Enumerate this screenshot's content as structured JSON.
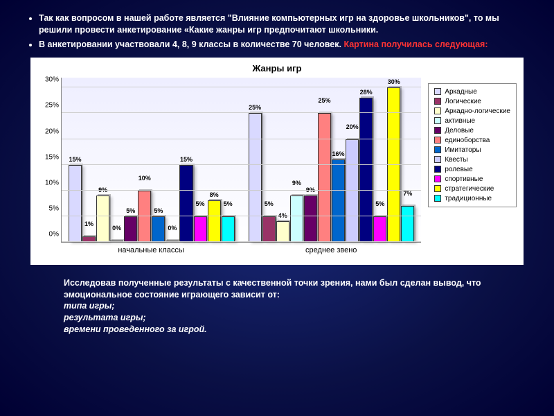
{
  "intro": {
    "bullet1": "Так как вопросом в нашей работе является \"Влияние компьютерных игр на здоровье школьников\", то мы решили провести анкетирование «Какие жанры игр предпочитают школьники.",
    "bullet2_a": " В анкетировании участвовали 4, 8, 9 классы в количестве 70 человек. ",
    "bullet2_b": "Картина получилась следующая:"
  },
  "chart": {
    "title": "Жанры игр",
    "type": "bar",
    "ylim": [
      0,
      30
    ],
    "ytick_step": 5,
    "yticks": [
      "0%",
      "5%",
      "10%",
      "15%",
      "20%",
      "25%",
      "30%"
    ],
    "ymax": 32,
    "background_color": "#ffffff",
    "categories": [
      "начальные классы",
      "среднее звено"
    ],
    "series": [
      {
        "label": "Аркадные",
        "color": "#d9d9ff",
        "values": [
          15,
          25
        ]
      },
      {
        "label": "Логические",
        "color": "#993366",
        "values": [
          1,
          5
        ]
      },
      {
        "label": "Аркадно-логические",
        "color": "#ffffcc",
        "values": [
          9,
          4
        ]
      },
      {
        "label": "активные",
        "color": "#ccffff",
        "values": [
          0,
          9
        ]
      },
      {
        "label": "Деловые",
        "color": "#660066",
        "values": [
          5,
          9
        ]
      },
      {
        "label": "единоборства",
        "color": "#ff8080",
        "values": [
          10,
          25
        ]
      },
      {
        "label": "Имитаторы",
        "color": "#0066cc",
        "values": [
          5,
          16
        ]
      },
      {
        "label": "Квесты",
        "color": "#ccccff",
        "values": [
          0,
          20
        ]
      },
      {
        "label": "ролевые",
        "color": "#000080",
        "values": [
          15,
          28
        ]
      },
      {
        "label": "спортивные",
        "color": "#ff00ff",
        "values": [
          5,
          5
        ]
      },
      {
        "label": "стратегические",
        "color": "#ffff00",
        "values": [
          8,
          30
        ]
      },
      {
        "label": "традиционные",
        "color": "#00ffff",
        "values": [
          5,
          7
        ]
      }
    ],
    "labels_group1": [
      "15%",
      "1%",
      "9%",
      "0%",
      "5%",
      "10%",
      "5%",
      "0%",
      "15%",
      "5%",
      "8%",
      "5%"
    ],
    "labels_group2": [
      "25%",
      "5%",
      "4%",
      "9%",
      "9%",
      "25%",
      "16%",
      "20%",
      "28%",
      "5%",
      "30%",
      "7%"
    ]
  },
  "conclusion": {
    "line1": "Исследовав полученные результаты с качественной точки зрения, нами был сделан вывод, что эмоциональное состояние играющего зависит от:",
    "line2": "типа игры;",
    "line3": "результата игры;",
    "line4": "времени проведенного за игрой."
  }
}
